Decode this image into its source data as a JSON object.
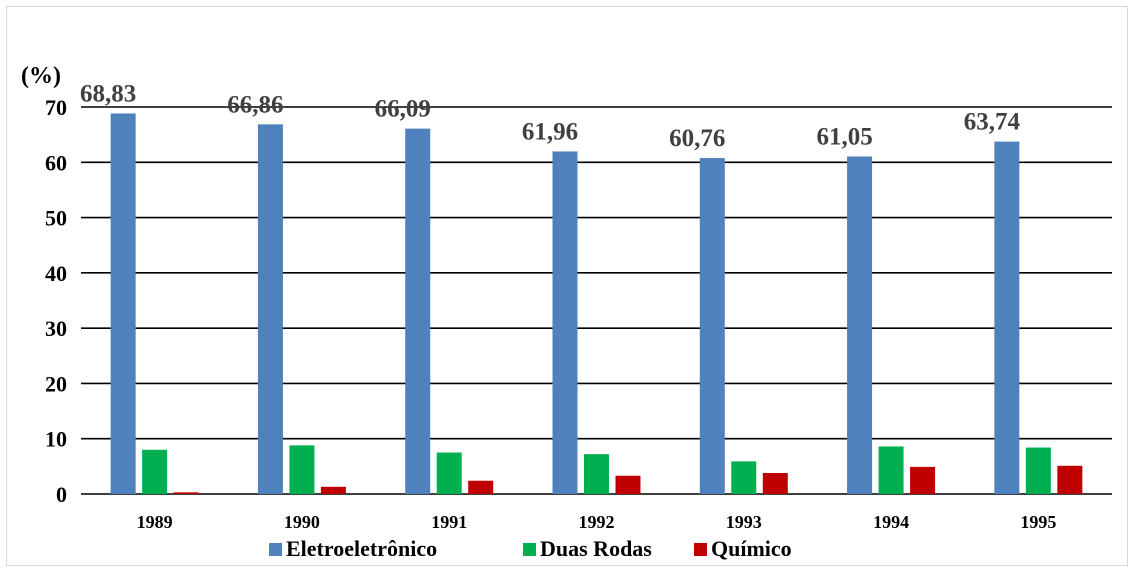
{
  "chart_data": {
    "type": "bar",
    "unit_label": "(%)",
    "categories": [
      "1989",
      "1990",
      "1991",
      "1992",
      "1993",
      "1994",
      "1995"
    ],
    "series": [
      {
        "name": "Eletroeletrônico",
        "color": "#4F81BD",
        "values": [
          68.83,
          66.86,
          66.09,
          61.96,
          60.76,
          61.05,
          63.74
        ],
        "labels": [
          "68,83",
          "66,86",
          "66,09",
          "61,96",
          "60,76",
          "61,05",
          "63,74"
        ]
      },
      {
        "name": "Duas Rodas",
        "color": "#00B050",
        "values": [
          8.0,
          8.8,
          7.5,
          7.2,
          5.9,
          8.6,
          8.4
        ]
      },
      {
        "name": "Químico",
        "color": "#C00000",
        "values": [
          0.3,
          1.3,
          2.4,
          3.3,
          3.8,
          4.9,
          5.1
        ]
      }
    ],
    "ylim": [
      0,
      70
    ],
    "yticks": [
      "0",
      "10",
      "20",
      "30",
      "40",
      "50",
      "60",
      "70"
    ],
    "grid": true,
    "legend_position": "bottom"
  }
}
